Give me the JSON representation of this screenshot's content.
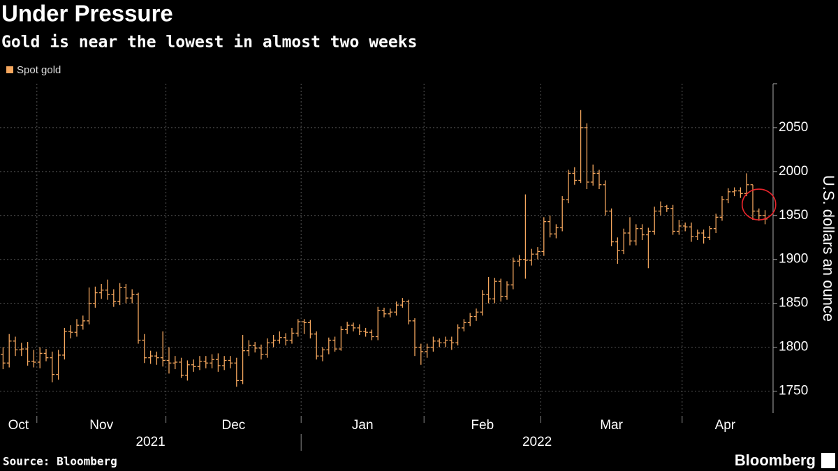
{
  "chart_data": {
    "type": "ohlc",
    "title": "Under Pressure",
    "subtitle": "Gold is near the lowest in almost two weeks",
    "y_axis_label": "U.S. dollars an ounce",
    "source": "Source: Bloomberg",
    "brand": "Bloomberg",
    "ylim": [
      1725,
      2100
    ],
    "yticks": [
      1750,
      1800,
      1850,
      1900,
      1950,
      2000,
      2050
    ],
    "grid": true,
    "legend": "top-left",
    "highlight_color": "#e8242b",
    "categories": [
      "Oct",
      "Oct",
      "Oct",
      "Oct",
      "Oct",
      "Oct",
      "Nov",
      "Nov",
      "Nov",
      "Nov",
      "Nov",
      "Nov",
      "Nov",
      "Nov",
      "Nov",
      "Nov",
      "Nov",
      "Nov",
      "Nov",
      "Nov",
      "Nov",
      "Nov",
      "Nov",
      "Nov",
      "Nov",
      "Nov",
      "Nov",
      "Dec",
      "Dec",
      "Dec",
      "Dec",
      "Dec",
      "Dec",
      "Dec",
      "Dec",
      "Dec",
      "Dec",
      "Dec",
      "Dec",
      "Dec",
      "Dec",
      "Dec",
      "Dec",
      "Dec",
      "Dec",
      "Dec",
      "Dec",
      "Dec",
      "Dec",
      "Jan",
      "Jan",
      "Jan",
      "Jan",
      "Jan",
      "Jan",
      "Jan",
      "Jan",
      "Jan",
      "Jan",
      "Jan",
      "Jan",
      "Jan",
      "Jan",
      "Jan",
      "Jan",
      "Jan",
      "Jan",
      "Jan",
      "Jan",
      "Feb",
      "Feb",
      "Feb",
      "Feb",
      "Feb",
      "Feb",
      "Feb",
      "Feb",
      "Feb",
      "Feb",
      "Feb",
      "Feb",
      "Feb",
      "Feb",
      "Feb",
      "Feb",
      "Feb",
      "Feb",
      "Feb",
      "Mar",
      "Mar",
      "Mar",
      "Mar",
      "Mar",
      "Mar",
      "Mar",
      "Mar",
      "Mar",
      "Mar",
      "Mar",
      "Mar",
      "Mar",
      "Mar",
      "Mar",
      "Mar",
      "Mar",
      "Mar",
      "Mar",
      "Mar",
      "Mar",
      "Mar",
      "Mar",
      "Apr",
      "Apr",
      "Apr",
      "Apr",
      "Apr",
      "Apr",
      "Apr",
      "Apr",
      "Apr",
      "Apr",
      "Apr",
      "Apr",
      "Apr",
      "Apr"
    ],
    "year_labels": [
      {
        "label": "2021",
        "first_month": "Oct"
      },
      {
        "label": "2022",
        "first_month": "Jan"
      }
    ],
    "series": [
      {
        "name": "Spot gold",
        "color": "#f5a75e",
        "open": [
          1792,
          1782,
          1807,
          1797,
          1798,
          1784,
          1783,
          1793,
          1788,
          1769,
          1791,
          1818,
          1817,
          1825,
          1830,
          1850,
          1862,
          1865,
          1860,
          1852,
          1868,
          1856,
          1860,
          1808,
          1788,
          1790,
          1788,
          1785,
          1782,
          1783,
          1768,
          1780,
          1778,
          1784,
          1782,
          1786,
          1779,
          1785,
          1782,
          1762,
          1796,
          1802,
          1799,
          1792,
          1805,
          1808,
          1811,
          1808,
          1816,
          1829,
          1828,
          1815,
          1790,
          1797,
          1808,
          1798,
          1820,
          1825,
          1822,
          1818,
          1817,
          1812,
          1842,
          1838,
          1840,
          1848,
          1852,
          1830,
          1800,
          1795,
          1800,
          1807,
          1805,
          1808,
          1805,
          1822,
          1828,
          1835,
          1840,
          1860,
          1855,
          1875,
          1858,
          1871,
          1898,
          1900,
          1899,
          1906,
          1909,
          1943,
          1929,
          1936,
          1968,
          1998,
          1990,
          2050,
          1988,
          1998,
          1985,
          1955,
          1920,
          1910,
          1930,
          1921,
          1935,
          1928,
          1932,
          1955,
          1960,
          1958,
          1932,
          1938,
          1937,
          1926,
          1930,
          1925,
          1935,
          1948,
          1968,
          1977,
          1978,
          1975,
          1985,
          1955,
          1950
        ],
        "high": [
          1800,
          1815,
          1812,
          1805,
          1806,
          1797,
          1800,
          1798,
          1795,
          1797,
          1822,
          1825,
          1832,
          1836,
          1868,
          1869,
          1872,
          1877,
          1866,
          1873,
          1872,
          1866,
          1862,
          1815,
          1796,
          1795,
          1818,
          1800,
          1790,
          1788,
          1785,
          1786,
          1790,
          1790,
          1792,
          1793,
          1790,
          1790,
          1788,
          1814,
          1808,
          1806,
          1803,
          1810,
          1814,
          1818,
          1816,
          1822,
          1832,
          1832,
          1831,
          1818,
          1800,
          1811,
          1812,
          1824,
          1829,
          1828,
          1826,
          1822,
          1820,
          1846,
          1845,
          1844,
          1852,
          1856,
          1854,
          1833,
          1804,
          1804,
          1812,
          1810,
          1812,
          1812,
          1826,
          1832,
          1839,
          1844,
          1865,
          1880,
          1879,
          1878,
          1875,
          1902,
          1905,
          1974,
          1912,
          1914,
          1948,
          1950,
          1940,
          1972,
          2002,
          2005,
          2070,
          2055,
          2008,
          2002,
          1990,
          1958,
          1925,
          1935,
          1948,
          1940,
          1940,
          1936,
          1960,
          1966,
          1962,
          1962,
          1945,
          1942,
          1942,
          1934,
          1934,
          1938,
          1952,
          1972,
          1981,
          1982,
          1982,
          1998,
          1985,
          1958,
          1956
        ],
        "low": [
          1775,
          1777,
          1790,
          1790,
          1779,
          1777,
          1776,
          1784,
          1760,
          1763,
          1786,
          1810,
          1812,
          1820,
          1826,
          1845,
          1855,
          1854,
          1846,
          1848,
          1850,
          1850,
          1804,
          1782,
          1781,
          1780,
          1778,
          1770,
          1775,
          1765,
          1762,
          1772,
          1774,
          1776,
          1776,
          1772,
          1774,
          1776,
          1755,
          1758,
          1790,
          1794,
          1786,
          1788,
          1800,
          1804,
          1802,
          1804,
          1812,
          1815,
          1810,
          1786,
          1784,
          1792,
          1795,
          1796,
          1815,
          1818,
          1814,
          1812,
          1808,
          1808,
          1834,
          1834,
          1836,
          1845,
          1826,
          1790,
          1780,
          1788,
          1795,
          1800,
          1800,
          1797,
          1802,
          1818,
          1824,
          1830,
          1836,
          1850,
          1850,
          1852,
          1854,
          1866,
          1892,
          1878,
          1893,
          1900,
          1904,
          1925,
          1924,
          1932,
          1964,
          1985,
          1987,
          1980,
          1984,
          1980,
          1950,
          1915,
          1895,
          1906,
          1916,
          1916,
          1922,
          1890,
          1928,
          1950,
          1954,
          1928,
          1928,
          1932,
          1920,
          1922,
          1918,
          1922,
          1930,
          1944,
          1964,
          1972,
          1970,
          1972,
          1945,
          1944,
          1940
        ],
        "close": [
          1782,
          1807,
          1797,
          1798,
          1784,
          1783,
          1793,
          1788,
          1769,
          1791,
          1818,
          1817,
          1825,
          1830,
          1850,
          1862,
          1865,
          1860,
          1852,
          1868,
          1856,
          1860,
          1808,
          1788,
          1790,
          1788,
          1785,
          1782,
          1783,
          1768,
          1780,
          1778,
          1784,
          1782,
          1786,
          1779,
          1785,
          1782,
          1762,
          1796,
          1802,
          1799,
          1792,
          1805,
          1808,
          1811,
          1808,
          1816,
          1829,
          1828,
          1815,
          1790,
          1797,
          1808,
          1798,
          1820,
          1825,
          1822,
          1818,
          1817,
          1812,
          1842,
          1838,
          1840,
          1848,
          1852,
          1830,
          1800,
          1795,
          1800,
          1807,
          1805,
          1808,
          1805,
          1822,
          1828,
          1835,
          1840,
          1860,
          1855,
          1875,
          1858,
          1871,
          1898,
          1900,
          1899,
          1906,
          1909,
          1943,
          1929,
          1936,
          1968,
          1998,
          1990,
          2050,
          1988,
          1998,
          1985,
          1955,
          1920,
          1910,
          1930,
          1921,
          1935,
          1928,
          1932,
          1955,
          1960,
          1958,
          1932,
          1938,
          1937,
          1926,
          1930,
          1925,
          1935,
          1948,
          1968,
          1977,
          1978,
          1975,
          1985,
          1955,
          1950,
          1946
        ]
      }
    ]
  }
}
